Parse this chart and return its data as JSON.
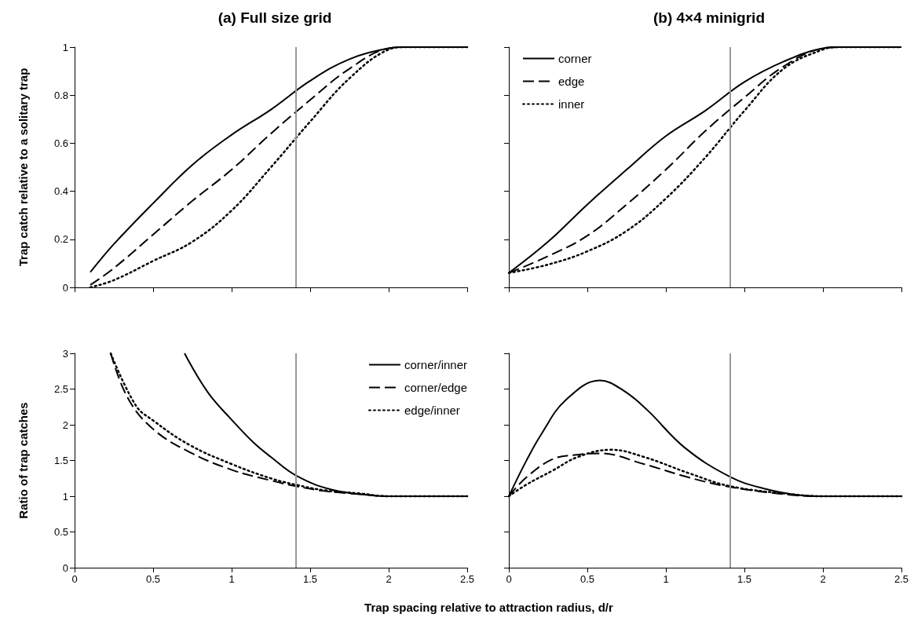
{
  "chart_data": [
    {
      "type": "line",
      "title": "(a) Full size grid",
      "ylabel": "Trap catch relative to a solitary trap",
      "xlim": [
        0,
        2.5
      ],
      "xticks": [
        0,
        0.5,
        1,
        1.5,
        2,
        2.5
      ],
      "ylim": [
        0,
        1
      ],
      "yticks": [
        0,
        0.2,
        0.4,
        0.6,
        0.8,
        1
      ],
      "tick_labels": "y",
      "grid": false,
      "legend": false,
      "marker": "none",
      "ref_lines": [
        {
          "axis": "x",
          "value": 1.41,
          "color": "#999999"
        }
      ],
      "series": [
        {
          "color": "#000000",
          "line_style": "solid",
          "x": [
            0.1,
            0.25,
            0.5,
            0.75,
            1,
            1.25,
            1.5,
            1.75,
            2,
            2.1,
            2.5
          ],
          "values": [
            0.063,
            0.18,
            0.35,
            0.51,
            0.635,
            0.74,
            0.86,
            0.95,
            0.995,
            1,
            1
          ]
        },
        {
          "color": "#000000",
          "line_style": "dashed",
          "x": [
            0.1,
            0.25,
            0.5,
            0.75,
            1,
            1.25,
            1.5,
            1.75,
            2,
            2.1,
            2.5
          ],
          "values": [
            0.01,
            0.08,
            0.22,
            0.36,
            0.49,
            0.64,
            0.78,
            0.91,
            0.995,
            1,
            1
          ]
        },
        {
          "color": "#000000",
          "line_style": "dotted",
          "x": [
            0.1,
            0.25,
            0.5,
            0.75,
            1,
            1.25,
            1.5,
            1.75,
            2,
            2.1,
            2.5
          ],
          "values": [
            0,
            0.03,
            0.11,
            0.19,
            0.32,
            0.5,
            0.69,
            0.87,
            0.99,
            1,
            1
          ]
        }
      ]
    },
    {
      "type": "line",
      "title": "(b) 4×4 minigrid",
      "xlim": [
        0,
        2.5
      ],
      "xticks": [
        0,
        0.5,
        1,
        1.5,
        2,
        2.5
      ],
      "ylim": [
        0,
        1
      ],
      "yticks": [
        0,
        0.2,
        0.4,
        0.6,
        0.8,
        1
      ],
      "tick_labels": false,
      "grid": false,
      "legend": "top left",
      "marker": "none",
      "ref_lines": [
        {
          "axis": "x",
          "value": 1.41,
          "color": "#999999"
        }
      ],
      "series": [
        {
          "name": "corner",
          "color": "#000000",
          "line_style": "solid",
          "x": [
            0,
            0.25,
            0.5,
            0.75,
            1,
            1.25,
            1.5,
            1.75,
            2,
            2.1,
            2.5
          ],
          "values": [
            0.06,
            0.19,
            0.345,
            0.49,
            0.63,
            0.735,
            0.855,
            0.94,
            0.995,
            1,
            1
          ]
        },
        {
          "name": "edge",
          "color": "#000000",
          "line_style": "dashed",
          "x": [
            0,
            0.25,
            0.5,
            0.75,
            1,
            1.25,
            1.5,
            1.75,
            2,
            2.1,
            2.5
          ],
          "values": [
            0.06,
            0.13,
            0.215,
            0.345,
            0.49,
            0.65,
            0.79,
            0.92,
            0.995,
            1,
            1
          ]
        },
        {
          "name": "inner",
          "color": "#000000",
          "line_style": "dotted",
          "x": [
            0,
            0.25,
            0.5,
            0.75,
            1,
            1.25,
            1.5,
            1.75,
            2,
            2.1,
            2.5
          ],
          "values": [
            0.06,
            0.095,
            0.15,
            0.235,
            0.37,
            0.54,
            0.735,
            0.91,
            0.99,
            1,
            1
          ]
        }
      ]
    },
    {
      "type": "line",
      "ylabel": "Ratio of trap catches",
      "xlabel": "Trap spacing relative to attraction radius, d/r",
      "xlim": [
        0,
        2.5
      ],
      "xticks": [
        0,
        0.5,
        1,
        1.5,
        2,
        2.5
      ],
      "ylim": [
        0,
        3
      ],
      "yticks": [
        0,
        0.5,
        1,
        1.5,
        2,
        2.5,
        3
      ],
      "grid": false,
      "legend": "top right",
      "marker": "none",
      "ref_lines": [
        {
          "axis": "x",
          "value": 1.41,
          "color": "#999999"
        }
      ],
      "series": [
        {
          "name": "corner/inner",
          "color": "#000000",
          "line_style": "solid",
          "x": [
            0.7,
            0.85,
            1,
            1.14,
            1.25,
            1.41,
            1.64,
            1.9,
            2,
            2.5
          ],
          "values": [
            3,
            2.45,
            2.07,
            1.75,
            1.55,
            1.29,
            1.09,
            1.01,
            1,
            1
          ]
        },
        {
          "name": "corner/edge",
          "color": "#000000",
          "line_style": "dashed",
          "x": [
            0.23,
            0.34,
            0.5,
            0.73,
            1,
            1.25,
            1.41,
            1.6,
            1.81,
            2,
            2.5
          ],
          "values": [
            3,
            2.37,
            1.94,
            1.62,
            1.37,
            1.22,
            1.14,
            1.07,
            1.03,
            1,
            1
          ]
        },
        {
          "name": "edge/inner",
          "color": "#000000",
          "line_style": "dotted",
          "x": [
            0.23,
            0.39,
            0.5,
            0.73,
            1,
            1.25,
            1.41,
            1.6,
            1.81,
            2,
            2.5
          ],
          "values": [
            3,
            2.27,
            2.06,
            1.72,
            1.45,
            1.25,
            1.16,
            1.08,
            1.04,
            1,
            1
          ]
        }
      ]
    },
    {
      "type": "line",
      "xlim": [
        0,
        2.5
      ],
      "xticks": [
        0,
        0.5,
        1,
        1.5,
        2,
        2.5
      ],
      "ylim": [
        0,
        3
      ],
      "yticks": [
        0,
        0.5,
        1,
        1.5,
        2,
        2.5,
        3
      ],
      "tick_labels": "x",
      "grid": false,
      "legend": false,
      "marker": "none",
      "ref_lines": [
        {
          "axis": "x",
          "value": 1.41,
          "color": "#999999"
        }
      ],
      "series": [
        {
          "color": "#000000",
          "line_style": "solid",
          "x": [
            0,
            0.11,
            0.21,
            0.36,
            0.58,
            0.73,
            0.88,
            1.12,
            1.41,
            1.62,
            1.87,
            2,
            2.5
          ],
          "values": [
            1,
            1.49,
            1.88,
            2.34,
            2.62,
            2.48,
            2.21,
            1.68,
            1.27,
            1.11,
            1.01,
            1,
            1
          ]
        },
        {
          "color": "#000000",
          "line_style": "dashed",
          "x": [
            0,
            0.11,
            0.28,
            0.43,
            0.58,
            0.86,
            1.15,
            1.41,
            1.79,
            2,
            2.5
          ],
          "values": [
            1,
            1.26,
            1.52,
            1.58,
            1.6,
            1.45,
            1.26,
            1.13,
            1.02,
            1,
            1
          ]
        },
        {
          "color": "#000000",
          "line_style": "dotted",
          "x": [
            0,
            0.11,
            0.28,
            0.44,
            0.65,
            0.86,
            1.15,
            1.41,
            1.79,
            2,
            2.5
          ],
          "values": [
            1,
            1.16,
            1.36,
            1.55,
            1.65,
            1.55,
            1.32,
            1.14,
            1.03,
            1,
            1
          ]
        }
      ]
    }
  ]
}
